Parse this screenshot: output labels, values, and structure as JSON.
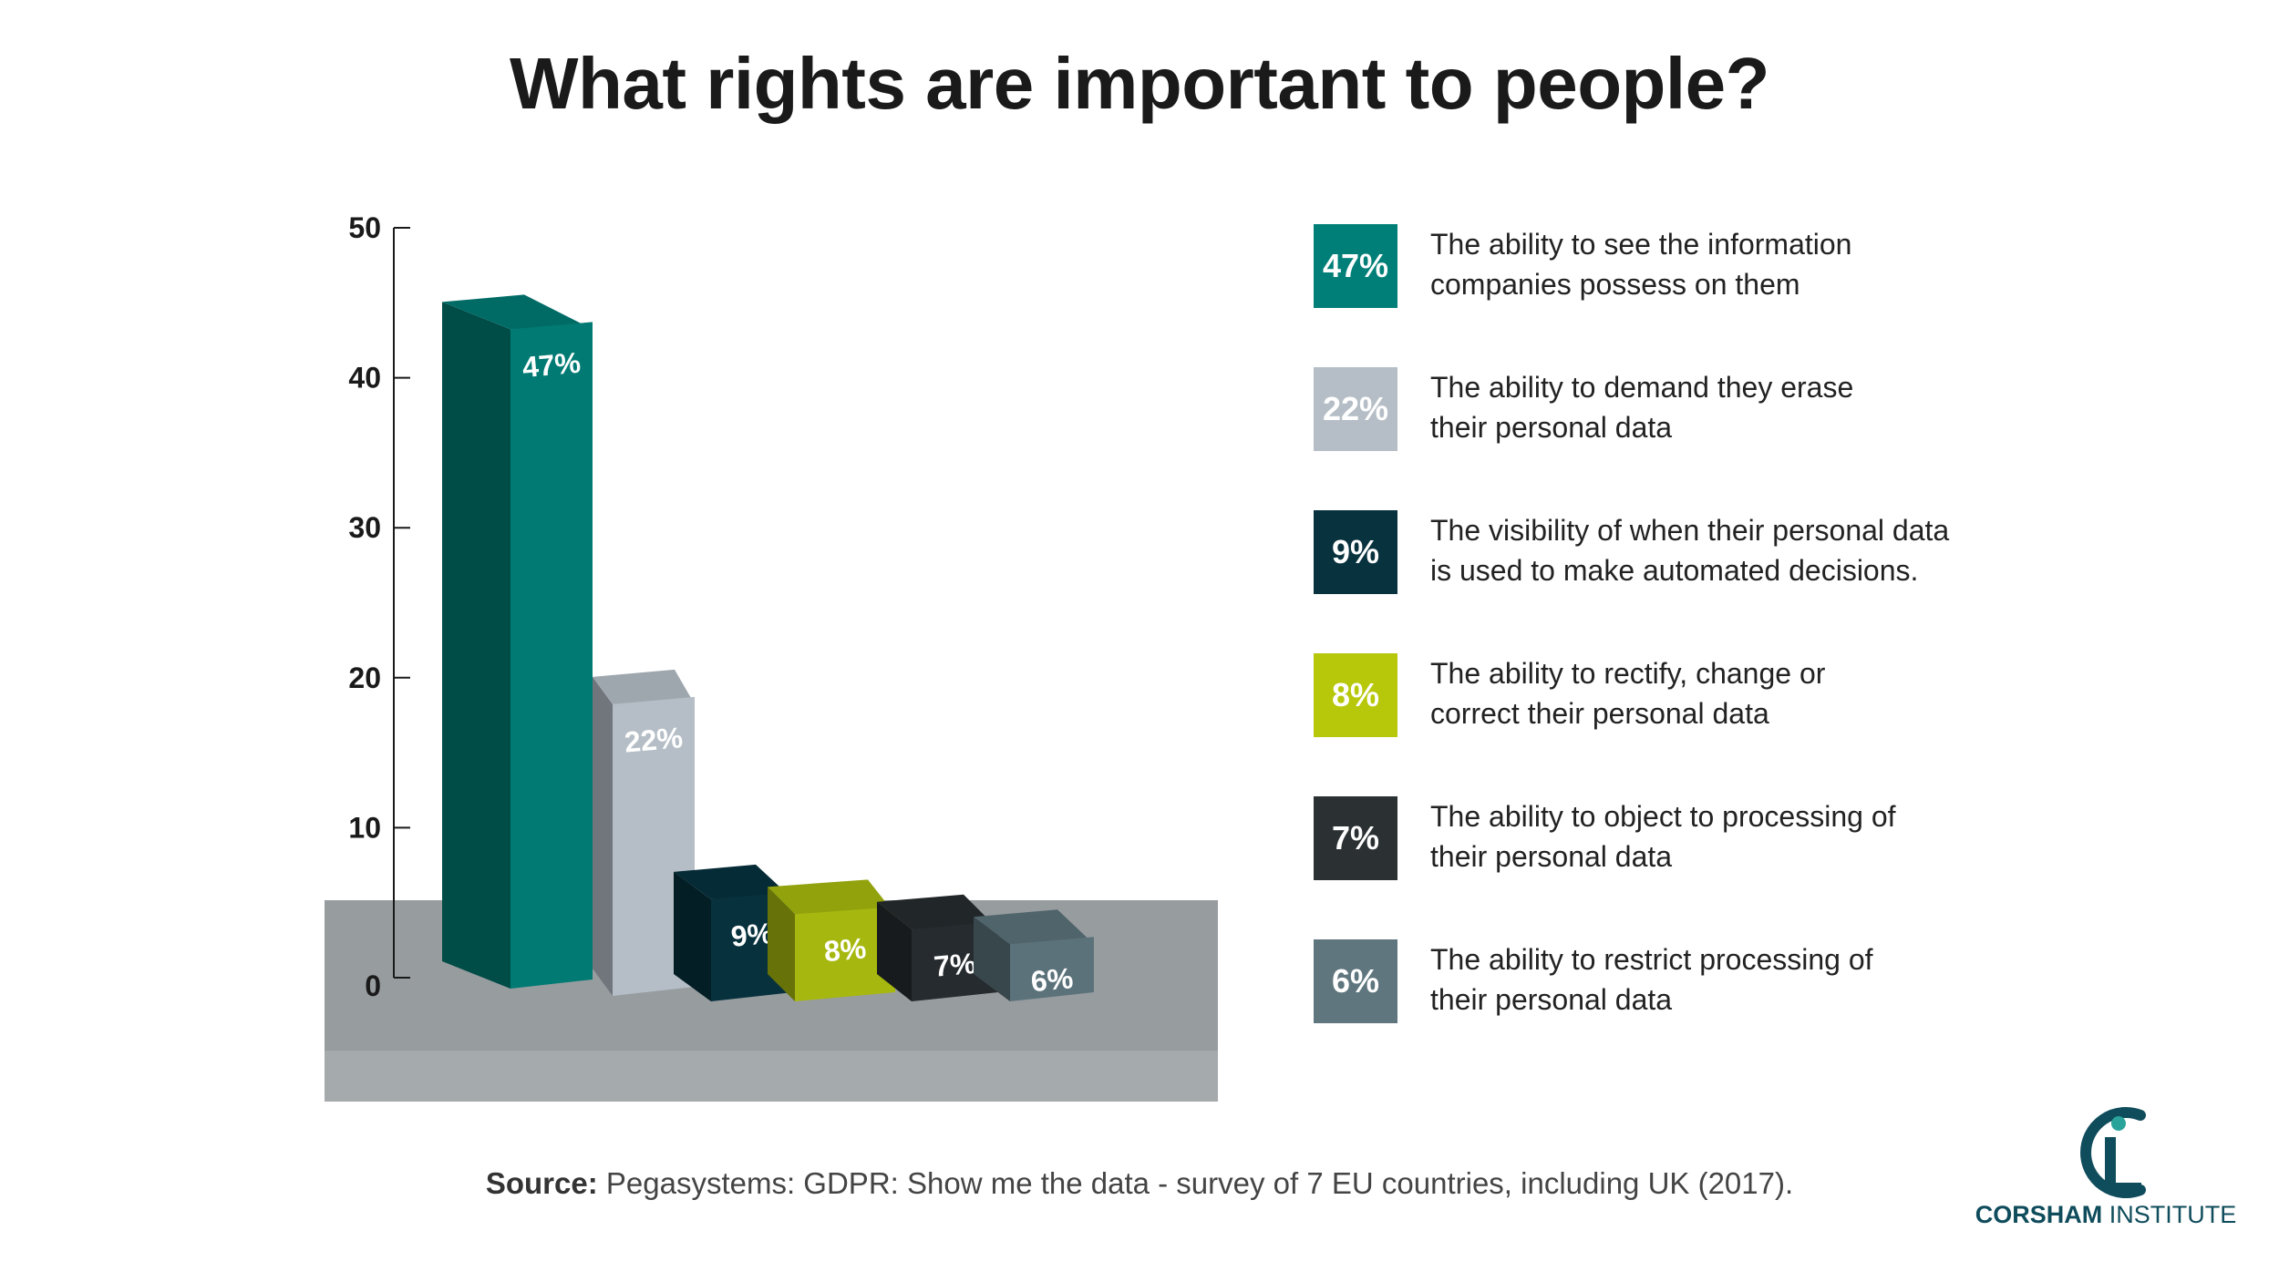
{
  "title": "What rights are important to people?",
  "chart_data": {
    "type": "bar",
    "title": "What rights are important to people?",
    "ylim": [
      0,
      50
    ],
    "yticks": [
      0,
      10,
      20,
      30,
      40,
      50
    ],
    "grid": false,
    "legend_position": "right",
    "categories": [
      "The ability to see the information companies possess on them",
      "The ability to demand they erase their personal data",
      "The visibility of when their personal data is used to make automated decisions.",
      "The ability to rectify, change or correct their personal data",
      "The ability to object to processing of their personal data",
      "The ability to restrict processing of their personal data"
    ],
    "values": [
      47,
      22,
      9,
      8,
      7,
      6
    ],
    "value_labels": [
      "47%",
      "22%",
      "9%",
      "8%",
      "7%",
      "6%"
    ],
    "colors": [
      "#007a73",
      "#b5bec6",
      "#06313d",
      "#a6b80f",
      "#262b2f",
      "#5b727a"
    ]
  },
  "legend": [
    {
      "swatch": "47%",
      "line1": "The ability to see the information",
      "line2": "companies possess on them",
      "color": "#007f78"
    },
    {
      "swatch": "22%",
      "line1": "The ability to demand they erase",
      "line2": "their personal data",
      "color": "#b5bec6"
    },
    {
      "swatch": "9%",
      "line1": "The visibility of when their personal data",
      "line2": "is used to make automated decisions.",
      "color": "#07323e"
    },
    {
      "swatch": "8%",
      "line1": "The ability to rectify, change or",
      "line2": "correct their personal data",
      "color": "#b7c70a"
    },
    {
      "swatch": "7%",
      "line1": "The ability to object to processing of",
      "line2": "their personal data",
      "color": "#2b3033"
    },
    {
      "swatch": "6%",
      "line1": "The ability to restrict processing of",
      "line2": "their personal data",
      "color": "#5f767e"
    }
  ],
  "source": {
    "label": "Source:",
    "text": "Pegasystems: GDPR: Show me the data - survey of 7 EU countries, including UK (2017)."
  },
  "logo": {
    "word1": "CORSHAM",
    "word2": "INSTITUTE",
    "icon": "corsham-ci-icon",
    "color": "#0f4c5c"
  }
}
